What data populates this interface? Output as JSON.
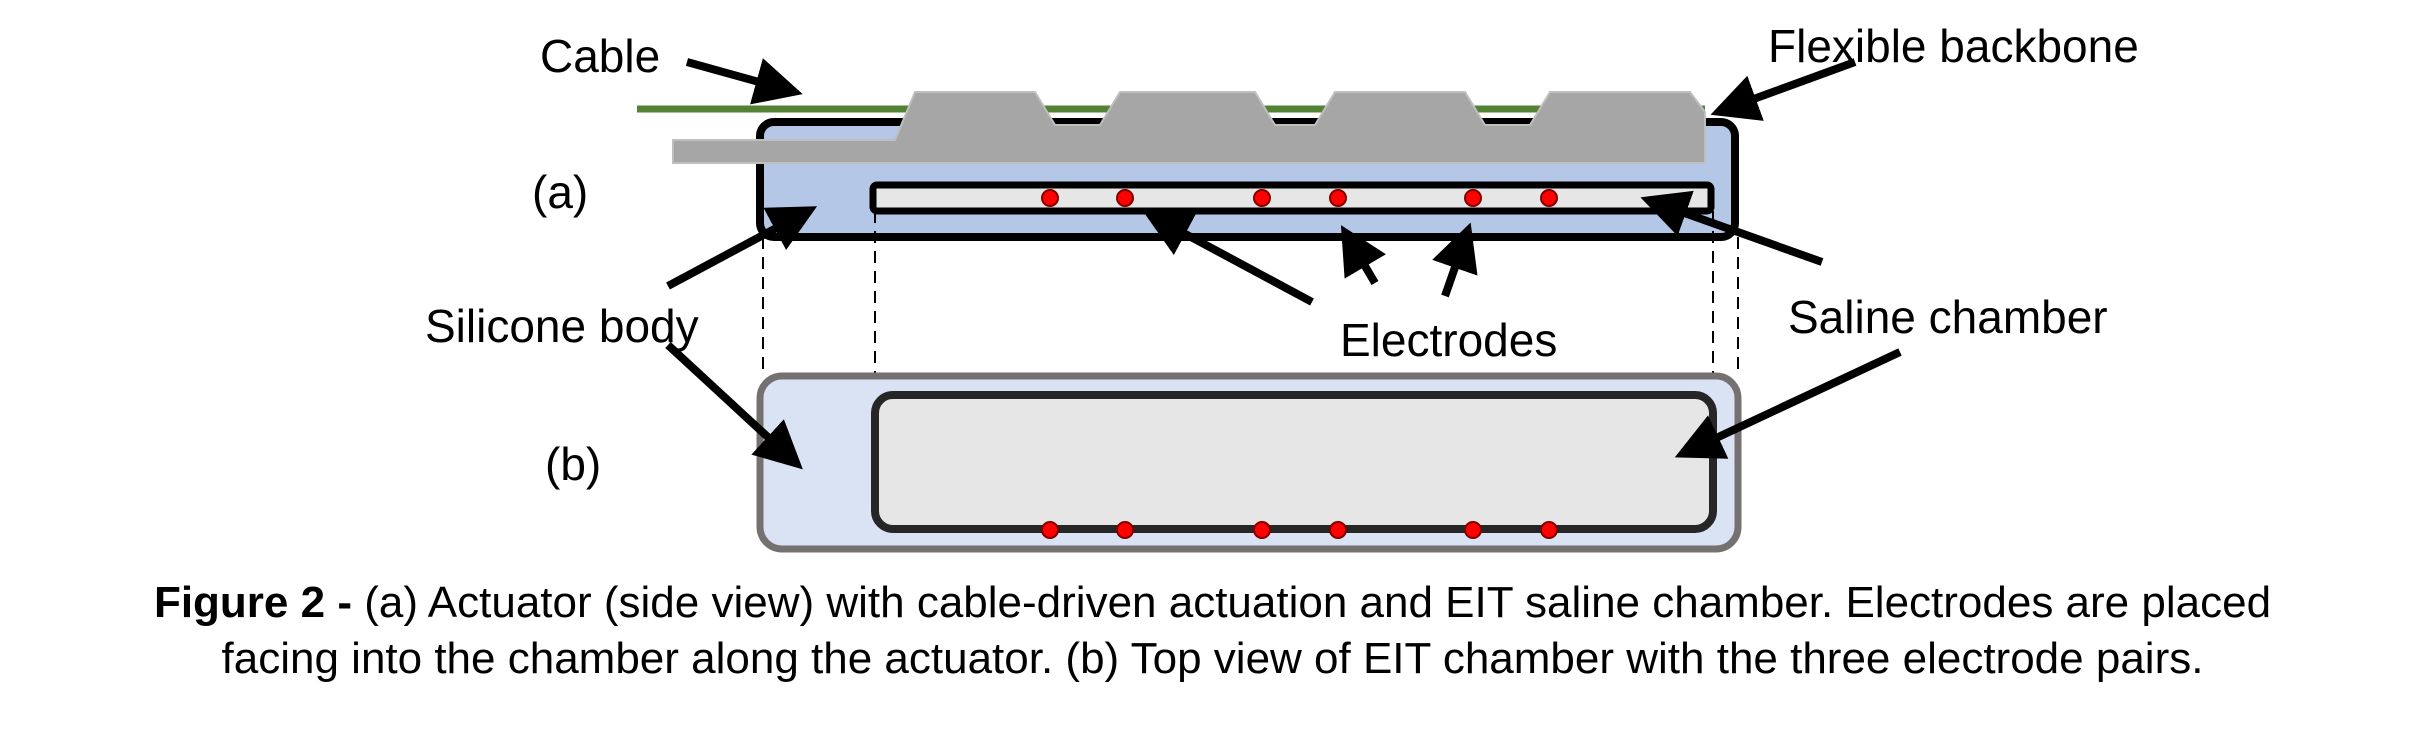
{
  "labels": {
    "cable": "Cable",
    "flexible_backbone": "Flexible backbone",
    "view_a": "(a)",
    "view_b": "(b)",
    "silicone_body": "Silicone body",
    "electrodes": "Electrodes",
    "saline_chamber": "Saline chamber"
  },
  "caption": {
    "figure_label": "Figure 2 -",
    "line1": " (a) Actuator (side view) with cable-driven actuation and EIT saline chamber. Electrodes are placed",
    "line2": "facing into the chamber along the actuator. (b) Top view of EIT chamber with the three electrode pairs."
  },
  "colors": {
    "cable": "#548235",
    "backbone": "#a6a6a6",
    "silicone_side": "#b4c7e7",
    "silicone_top": "#dae3f3",
    "chamber": "#e7e6e6",
    "electrode": "#ff0000",
    "top_outline": "#767171"
  }
}
